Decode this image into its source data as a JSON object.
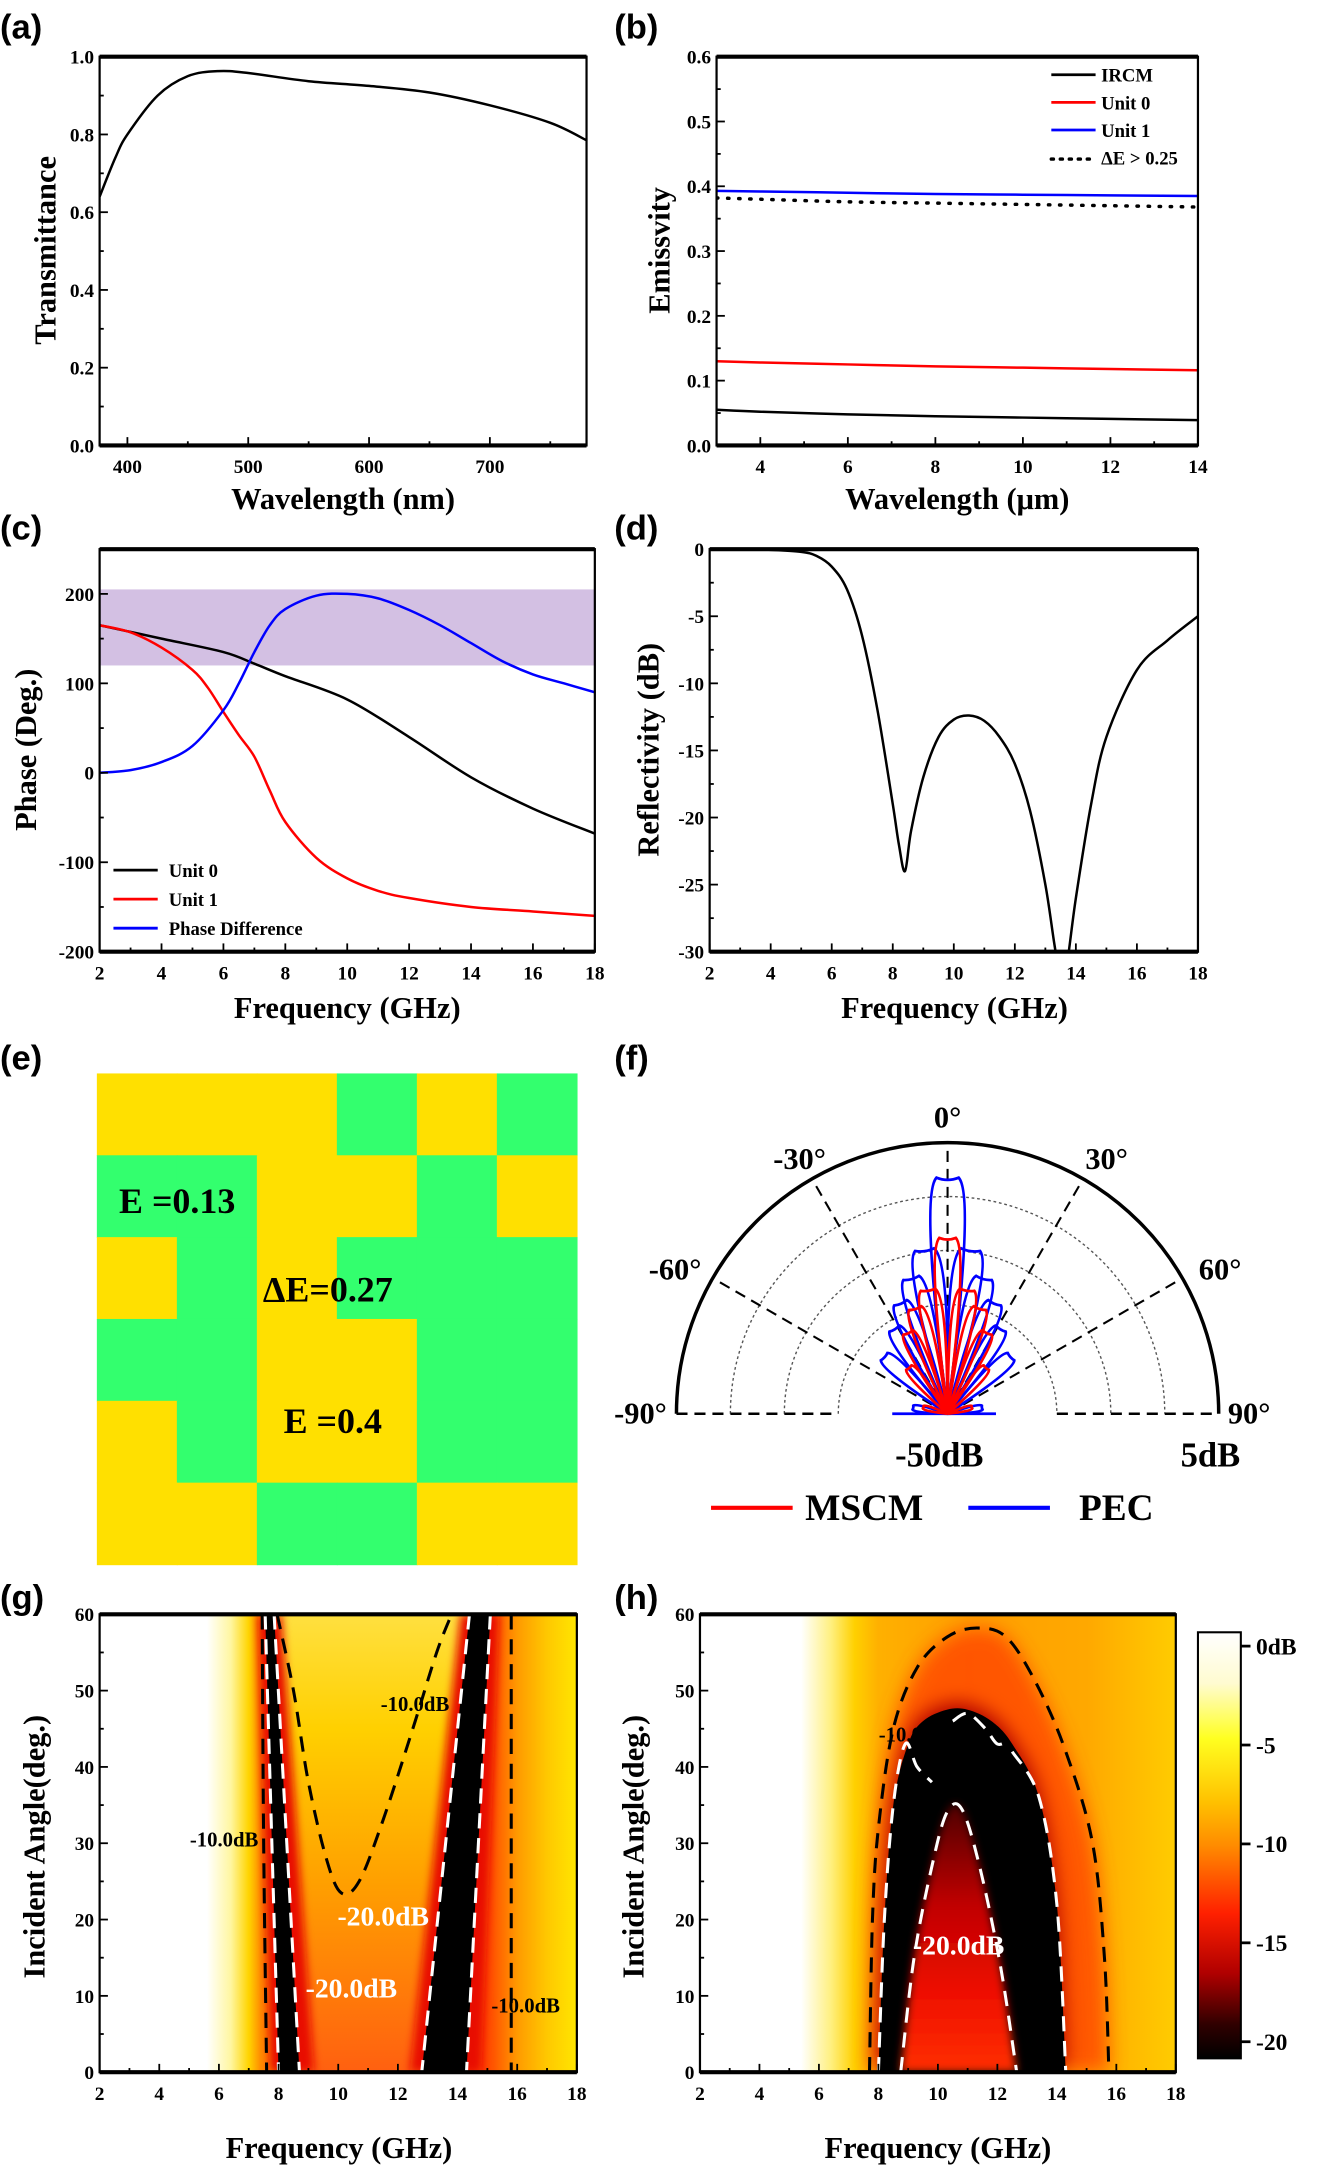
{
  "chart_data": [
    {
      "panel": "(a)",
      "type": "line",
      "xlabel": "Wavelength (nm)",
      "ylabel": "Transmittance",
      "xlim": [
        377,
        780
      ],
      "ylim": [
        0,
        1.0
      ],
      "xticks": [
        400,
        500,
        600,
        700
      ],
      "yticks": [
        0.0,
        0.2,
        0.4,
        0.6,
        0.8,
        1.0
      ],
      "series": [
        {
          "color": "#000000",
          "x": [
            377,
            390,
            400,
            425,
            450,
            475,
            500,
            550,
            600,
            650,
            700,
            750,
            780
          ],
          "y": [
            0.64,
            0.74,
            0.8,
            0.9,
            0.95,
            0.963,
            0.958,
            0.937,
            0.925,
            0.908,
            0.875,
            0.83,
            0.785
          ]
        }
      ]
    },
    {
      "panel": "(b)",
      "type": "line",
      "xlabel": "Wavelength (μm)",
      "ylabel": "Emissvity",
      "xlim": [
        3,
        14
      ],
      "ylim": [
        0,
        0.6
      ],
      "xticks": [
        4,
        6,
        8,
        10,
        12,
        14
      ],
      "yticks": [
        0.0,
        0.1,
        0.2,
        0.3,
        0.4,
        0.5,
        0.6
      ],
      "legend_position": "top-right",
      "series": [
        {
          "name": "IRCM",
          "color": "#000000",
          "style": "solid",
          "x": [
            3,
            4,
            6,
            8,
            10,
            12,
            14
          ],
          "y": [
            0.055,
            0.052,
            0.048,
            0.045,
            0.043,
            0.041,
            0.039
          ]
        },
        {
          "name": "Unit 0",
          "color": "#ff0000",
          "style": "solid",
          "x": [
            3,
            4,
            6,
            8,
            10,
            12,
            14
          ],
          "y": [
            0.13,
            0.128,
            0.125,
            0.122,
            0.12,
            0.118,
            0.116
          ]
        },
        {
          "name": "Unit 1",
          "color": "#0000ff",
          "style": "solid",
          "x": [
            3,
            4,
            6,
            8,
            10,
            12,
            14
          ],
          "y": [
            0.393,
            0.392,
            0.39,
            0.388,
            0.387,
            0.386,
            0.385
          ]
        },
        {
          "name": "ΔE > 0.25",
          "color": "#000000",
          "style": "dotted",
          "x": [
            3,
            4,
            6,
            8,
            10,
            12,
            14
          ],
          "y": [
            0.382,
            0.38,
            0.376,
            0.374,
            0.372,
            0.37,
            0.368
          ]
        }
      ]
    },
    {
      "panel": "(c)",
      "type": "line",
      "xlabel": "Frequency (GHz)",
      "ylabel": "Phase (Deg.)",
      "xlim": [
        2,
        18
      ],
      "ylim": [
        -200,
        250
      ],
      "xticks": [
        2,
        4,
        6,
        8,
        10,
        12,
        14,
        16,
        18
      ],
      "yticks": [
        -200,
        -100,
        0,
        100,
        200
      ],
      "legend_position": "bottom-left",
      "shaded_band": {
        "y": [
          120,
          205
        ],
        "color": "#d3c0e3"
      },
      "series": [
        {
          "name": "Unit 0",
          "color": "#000000",
          "x": [
            2,
            4,
            6,
            7,
            8,
            10,
            12,
            14,
            16,
            18
          ],
          "y": [
            165,
            150,
            135,
            122,
            108,
            82,
            40,
            -5,
            -40,
            -68
          ]
        },
        {
          "name": "Unit 1",
          "color": "#ff0000",
          "x": [
            2,
            3,
            4,
            5,
            5.5,
            6,
            6.5,
            7,
            7.5,
            8,
            9,
            10,
            11,
            12,
            14,
            16,
            18
          ],
          "y": [
            165,
            157,
            140,
            115,
            95,
            68,
            42,
            18,
            -20,
            -55,
            -95,
            -118,
            -132,
            -140,
            -150,
            -155,
            -160
          ]
        },
        {
          "name": "Phase Difference",
          "color": "#0000ff",
          "x": [
            2,
            3,
            4,
            5,
            6,
            6.5,
            7,
            7.5,
            8,
            9,
            10,
            11,
            12,
            13,
            14,
            15,
            16,
            17,
            18
          ],
          "y": [
            0,
            3,
            12,
            30,
            70,
            100,
            135,
            165,
            183,
            198,
            200,
            195,
            182,
            165,
            145,
            125,
            110,
            100,
            90
          ]
        }
      ]
    },
    {
      "panel": "(d)",
      "type": "line",
      "xlabel": "Frequency (GHz)",
      "ylabel": "Reflectivity (dB)",
      "xlim": [
        2,
        18
      ],
      "ylim": [
        -30,
        0
      ],
      "xticks": [
        2,
        4,
        6,
        8,
        10,
        12,
        14,
        16,
        18
      ],
      "yticks": [
        0,
        -5,
        -10,
        -15,
        -20,
        -25,
        -30
      ],
      "series": [
        {
          "color": "#000000",
          "x": [
            2,
            3,
            4,
            5,
            5.5,
            6,
            6.5,
            7,
            7.5,
            8,
            8.2,
            8.4,
            8.6,
            9,
            9.5,
            10,
            10.5,
            11,
            11.5,
            12,
            12.5,
            13,
            13.3,
            13.5,
            13.7,
            14,
            14.5,
            15,
            16,
            17,
            18
          ],
          "y": [
            0,
            0,
            -0.05,
            -0.2,
            -0.5,
            -1.3,
            -3,
            -6.5,
            -12,
            -19,
            -22,
            -24,
            -21,
            -17,
            -14,
            -12.7,
            -12.4,
            -12.8,
            -14,
            -16,
            -19.5,
            -25,
            -29.5,
            -32,
            -31,
            -26,
            -19,
            -14,
            -9,
            -6.8,
            -5
          ]
        }
      ]
    },
    {
      "panel": "(e)",
      "type": "heatmap",
      "colors": {
        "low": "#33ff6e",
        "high": "#ffe000"
      },
      "grid": [
        [
          1,
          1,
          1,
          0,
          1,
          0
        ],
        [
          0,
          0,
          1,
          1,
          0,
          1
        ],
        [
          1,
          0,
          1,
          0,
          0,
          0
        ],
        [
          0,
          0,
          1,
          1,
          0,
          0
        ],
        [
          1,
          0,
          1,
          1,
          0,
          0
        ],
        [
          1,
          1,
          0,
          0,
          1,
          1
        ]
      ],
      "annotations": [
        "E =0.13",
        "ΔE=0.27",
        "E =0.4"
      ]
    },
    {
      "panel": "(f)",
      "type": "polar",
      "angle_ticks": [
        "0°",
        "-30°",
        "30°",
        "-60°",
        "60°",
        "-90°",
        "90°"
      ],
      "radial_range": [
        "-50dB",
        "5dB"
      ],
      "radial_range_db": [
        -50,
        5
      ],
      "legend_position": "bottom",
      "series": [
        {
          "name": "MSCM",
          "color": "#ff0000",
          "lobe_angles": [
            0,
            -9,
            9,
            -17,
            17,
            -26,
            26,
            -40,
            40,
            -75,
            75
          ],
          "lobe_peaks_db": [
            -15,
            -25,
            -25,
            -28,
            -28,
            -32,
            -32,
            -38,
            -38,
            -45,
            -45
          ]
        },
        {
          "name": "PEC",
          "color": "#0000ff",
          "lobe_angles": [
            0,
            -8,
            8,
            -15,
            15,
            -23,
            23,
            -32,
            32,
            -48,
            48,
            -80,
            80
          ],
          "lobe_peaks_db": [
            -3,
            -17,
            -17,
            -22,
            -22,
            -26,
            -26,
            -30,
            -30,
            -33,
            -33,
            -43,
            -43
          ]
        }
      ]
    },
    {
      "panel": "(g)",
      "type": "heatmap",
      "xlabel": "Frequency (GHz)",
      "ylabel": "Incident Angle(deg.)",
      "xlim": [
        2,
        18
      ],
      "ylim": [
        0,
        60
      ],
      "xticks": [
        2,
        4,
        6,
        8,
        10,
        12,
        14,
        16,
        18
      ],
      "yticks": [
        0,
        10,
        20,
        30,
        40,
        50,
        60
      ],
      "contour_labels": [
        "-10.0dB",
        "-10.0dB",
        "-20.0dB",
        "-20.0dB",
        "-10.0dB"
      ],
      "contours": [
        {
          "level": -10,
          "color": "#000000",
          "points": [
            [
              7.45,
              60
            ],
            [
              7.5,
              30
            ],
            [
              7.6,
              0
            ]
          ]
        },
        {
          "level": -10,
          "color": "#000000",
          "points": [
            [
              7.95,
              60
            ],
            [
              8.5,
              50
            ],
            [
              9.0,
              38
            ],
            [
              9.6,
              28
            ],
            [
              10.1,
              23.5
            ],
            [
              10.7,
              25
            ],
            [
              11.5,
              33
            ],
            [
              12.5,
              45
            ],
            [
              13.3,
              55
            ],
            [
              13.8,
              60
            ]
          ]
        },
        {
          "level": -10,
          "color": "#000000",
          "points": [
            [
              15.8,
              60
            ],
            [
              15.8,
              0
            ]
          ]
        },
        {
          "level": -20,
          "color": "#ffffff",
          "points": [
            [
              7.55,
              60
            ],
            [
              8.0,
              0
            ]
          ]
        },
        {
          "level": -20,
          "color": "#ffffff",
          "points": [
            [
              7.85,
              60
            ],
            [
              8.7,
              0
            ]
          ]
        },
        {
          "level": -20,
          "color": "#ffffff",
          "points": [
            [
              14.4,
              60
            ],
            [
              12.8,
              0
            ]
          ]
        },
        {
          "level": -20,
          "color": "#ffffff",
          "points": [
            [
              15.1,
              60
            ],
            [
              14.3,
              0
            ]
          ]
        }
      ]
    },
    {
      "panel": "(h)",
      "type": "heatmap",
      "xlabel": "Frequency (GHz)",
      "ylabel": "Incident Angle(deg.)",
      "xlim": [
        2,
        18
      ],
      "ylim": [
        0,
        60
      ],
      "xticks": [
        2,
        4,
        6,
        8,
        10,
        12,
        14,
        16,
        18
      ],
      "yticks": [
        0,
        10,
        20,
        30,
        40,
        50,
        60
      ],
      "contour_labels": [
        "-10.0d",
        "-20.0dB"
      ],
      "contours": [
        {
          "level": -10,
          "color": "#000000",
          "points": [
            [
              7.7,
              0
            ],
            [
              7.8,
              20
            ],
            [
              8.0,
              32
            ],
            [
              8.5,
              45
            ],
            [
              9.3,
              53
            ],
            [
              10.3,
              57
            ],
            [
              11.3,
              58.2
            ],
            [
              12.3,
              57
            ],
            [
              13.3,
              51
            ],
            [
              14.3,
              42
            ],
            [
              15.2,
              30
            ],
            [
              15.6,
              15
            ],
            [
              15.75,
              0
            ]
          ]
        },
        {
          "level": -20,
          "color": "#ffffff",
          "points": [
            [
              8.0,
              0
            ],
            [
              8.2,
              20
            ],
            [
              8.5,
              35
            ],
            [
              8.9,
              43
            ],
            [
              9.3,
              40
            ],
            [
              9.8,
              38
            ]
          ]
        },
        {
          "level": -20,
          "color": "#ffffff",
          "points": [
            [
              8.75,
              0
            ],
            [
              9.2,
              15
            ],
            [
              9.8,
              27
            ],
            [
              10.3,
              34
            ],
            [
              10.8,
              34.5
            ],
            [
              11.4,
              27
            ],
            [
              12.1,
              14
            ],
            [
              12.65,
              0
            ]
          ]
        },
        {
          "level": -20,
          "color": "#ffffff",
          "points": [
            [
              10.5,
              46
            ],
            [
              11,
              47
            ],
            [
              11.6,
              45
            ],
            [
              12.0,
              43
            ],
            [
              12.4,
              43.5
            ]
          ]
        },
        {
          "level": -20,
          "color": "#ffffff",
          "points": [
            [
              12.5,
              42
            ],
            [
              13.4,
              36
            ],
            [
              14.0,
              22
            ],
            [
              14.3,
              0
            ]
          ]
        }
      ],
      "colorbar": {
        "range_db": [
          -21,
          0
        ],
        "ticks": [
          "0dB",
          "-5",
          "-10",
          "-15",
          "-20"
        ],
        "tick_values": [
          0,
          -5,
          -10,
          -15,
          -20
        ]
      }
    }
  ]
}
